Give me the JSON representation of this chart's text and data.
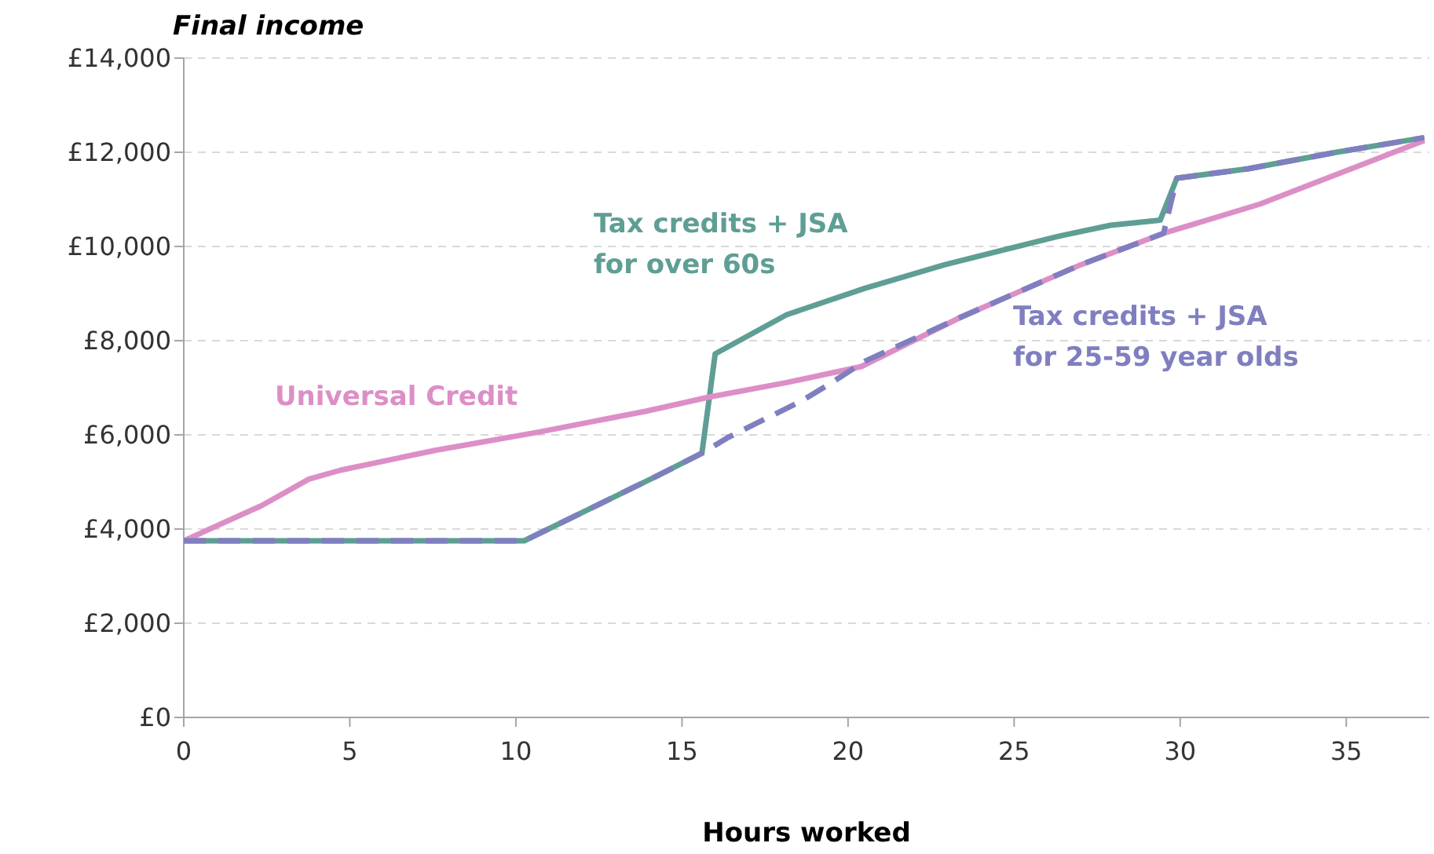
{
  "chart_data": {
    "type": "line",
    "ylabel": "Final income",
    "xlabel": "Hours worked",
    "xlim": [
      0,
      37.5
    ],
    "xticks": [
      0,
      5,
      10,
      15,
      20,
      25,
      30,
      35
    ],
    "ylim": [
      0,
      14000
    ],
    "yticks": [
      {
        "value": 0,
        "label": "£0"
      },
      {
        "value": 2000,
        "label": "£2,000"
      },
      {
        "value": 4000,
        "label": "£4,000"
      },
      {
        "value": 6000,
        "label": "£6,000"
      },
      {
        "value": 8000,
        "label": "£8,000"
      },
      {
        "value": 10000,
        "label": "£10,000"
      },
      {
        "value": 12000,
        "label": "£12,000"
      },
      {
        "value": 14000,
        "label": "£14,000"
      }
    ],
    "grid": "y",
    "series": [
      {
        "name": "Tax credits + JSA for over 60s",
        "color": "#5f9e94",
        "line_style": "solid",
        "x": [
          0,
          10.25,
          14.2,
          15.6,
          16.0,
          18.15,
          20.5,
          22.9,
          26.35,
          27.9,
          29.4,
          29.9,
          32.05,
          34.7,
          37.35
        ],
        "values": [
          3750,
          3750,
          5110,
          5610,
          7720,
          8550,
          9110,
          9610,
          10220,
          10450,
          10560,
          11450,
          11650,
          12000,
          12310
        ]
      },
      {
        "name": "Universal Credit",
        "color": "#dc8fc6",
        "line_style": "solid",
        "x": [
          0,
          2.35,
          3.77,
          4.72,
          7.57,
          10.7,
          13.9,
          15.8,
          18.15,
          20.4,
          23.4,
          27.0,
          29.5,
          32.4,
          37.35
        ],
        "values": [
          3750,
          4500,
          5060,
          5250,
          5670,
          6060,
          6500,
          6800,
          7110,
          7450,
          8500,
          9610,
          10280,
          10900,
          12250
        ]
      },
      {
        "name": "Tax credits + JSA for 25-59 year olds",
        "color": "#7f7fc0",
        "line_style": "dashed",
        "x": [
          0,
          10.25,
          14.2,
          15.6,
          16.4,
          18.6,
          19.4,
          20.5,
          23.4,
          27.0,
          29.5,
          29.9,
          32.05,
          34.7,
          37.35
        ],
        "values": [
          3750,
          3750,
          5110,
          5610,
          5950,
          6720,
          7060,
          7560,
          8500,
          9610,
          10280,
          11450,
          11650,
          12000,
          12310
        ]
      }
    ]
  }
}
